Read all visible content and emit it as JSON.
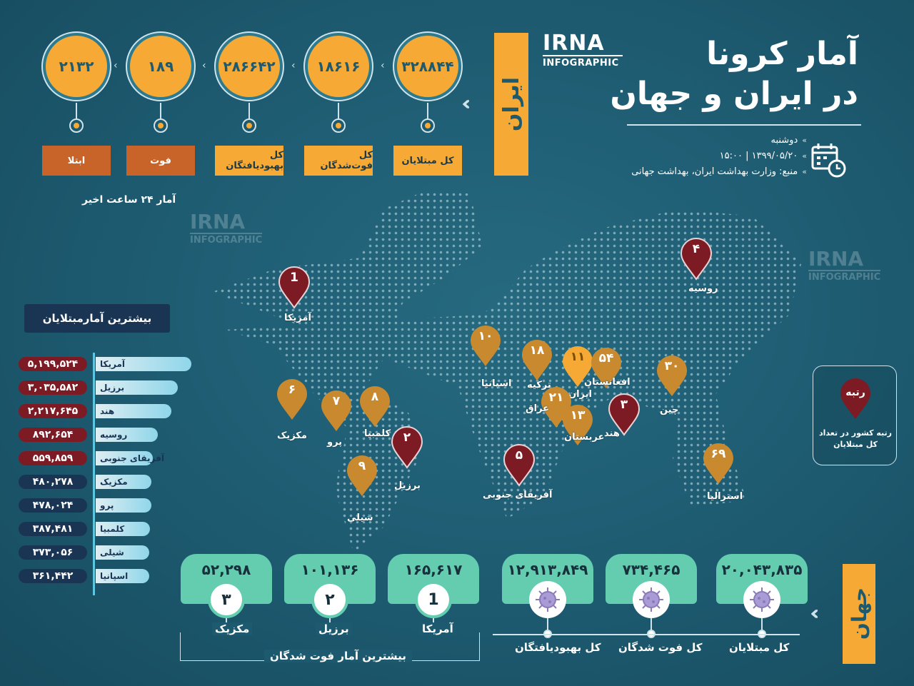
{
  "header": {
    "title_line1": "آمار کرونا",
    "title_line2": "در ایران و جهان",
    "logo_mark": "IRNA",
    "logo_sub": "INFOGRAPHIC",
    "weekday": "دوشنبه",
    "datetime": "۱۳۹۹/۰۵/۲۰ | ۱۵:۰۰",
    "source": "منبع: وزارت بهداشت ایران، بهداشت جهانی"
  },
  "iran": {
    "tab_label": "ایران",
    "stats": [
      {
        "value": "۳۲۸۸۴۴",
        "label": "کل مبتلایان",
        "style": "gold"
      },
      {
        "value": "۱۸۶۱۶",
        "label": "کل فوت‌شدگان",
        "style": "gold"
      },
      {
        "value": "۲۸۶۶۴۲",
        "label": "کل بهبودیافتگان",
        "style": "gold"
      },
      {
        "value": "۱۸۹",
        "label": "فوت",
        "style": "brown"
      },
      {
        "value": "۲۱۳۲",
        "label": "ابتلا",
        "style": "brown"
      }
    ],
    "note_24h": "آمار ۲۴ ساعت اخیر"
  },
  "top_infected": {
    "title": "بیشترین آمارمبتلایان",
    "rows": [
      {
        "country": "آمریکا",
        "value": "۵,۱۹۹,۵۲۴",
        "amount": 5199524,
        "tone": "red"
      },
      {
        "country": "برزیل",
        "value": "۳,۰۳۵,۵۸۲",
        "amount": 3035582,
        "tone": "red"
      },
      {
        "country": "هند",
        "value": "۲,۲۱۷,۶۴۵",
        "amount": 2217645,
        "tone": "red"
      },
      {
        "country": "روسیه",
        "value": "۸۹۲,۶۵۴",
        "amount": 892654,
        "tone": "red"
      },
      {
        "country": "آفریقای جنوبی",
        "value": "۵۵۹,۸۵۹",
        "amount": 559859,
        "tone": "red"
      },
      {
        "country": "مکزیک",
        "value": "۴۸۰,۲۷۸",
        "amount": 480278,
        "tone": "blue"
      },
      {
        "country": "پرو",
        "value": "۴۷۸,۰۲۴",
        "amount": 478024,
        "tone": "blue"
      },
      {
        "country": "کلمبیا",
        "value": "۳۸۷,۴۸۱",
        "amount": 387481,
        "tone": "blue"
      },
      {
        "country": "شیلی",
        "value": "۳۷۳,۰۵۶",
        "amount": 373056,
        "tone": "blue"
      },
      {
        "country": "اسپانیا",
        "value": "۳۶۱,۴۴۲",
        "amount": 361442,
        "tone": "blue"
      }
    ]
  },
  "map_pins": [
    {
      "rank": "1",
      "label": "آمریکا",
      "tone": "red"
    },
    {
      "rank": "۶",
      "label": "مکزیک",
      "tone": "gold"
    },
    {
      "rank": "۷",
      "label": "پرو",
      "tone": "gold"
    },
    {
      "rank": "۸",
      "label": "کلمبیا",
      "tone": "gold"
    },
    {
      "rank": "۲",
      "label": "برزیل",
      "tone": "red"
    },
    {
      "rank": "۹",
      "label": "شیلی",
      "tone": "gold"
    },
    {
      "rank": "۱۰",
      "label": "اسپانیا",
      "tone": "gold"
    },
    {
      "rank": "۵",
      "label": "آفریقای جنوبی",
      "tone": "red"
    },
    {
      "rank": "۱۸",
      "label": "ترکیه",
      "tone": "gold"
    },
    {
      "rank": "۱۱",
      "label": "ایران",
      "tone": "yellow"
    },
    {
      "rank": "۵۴",
      "label": "افغانستان",
      "tone": "gold"
    },
    {
      "rank": "۲۱",
      "label": "عراق",
      "tone": "gold"
    },
    {
      "rank": "۱۳",
      "label": "عربستان",
      "tone": "gold"
    },
    {
      "rank": "۳",
      "label": "هند",
      "tone": "red"
    },
    {
      "rank": "۳۰",
      "label": "چین",
      "tone": "gold"
    },
    {
      "rank": "۴",
      "label": "روسیه",
      "tone": "red"
    },
    {
      "rank": "۶۹",
      "label": "استرالیا",
      "tone": "gold"
    }
  ],
  "rank_legend": {
    "badge": "رتبه",
    "caption": "رتبه کشور در تعداد کل مبتلایان"
  },
  "world": {
    "tab_label": "جهان",
    "totals": [
      {
        "value": "۲۰,۰۴۳,۸۳۵",
        "label": "کل مبتلایان"
      },
      {
        "value": "۷۳۴,۴۶۵",
        "label": "کل فوت شدگان"
      },
      {
        "value": "۱۲,۹۱۳,۸۴۹",
        "label": "کل بهبودیافتگان"
      }
    ],
    "top_deaths_title": "بیشترین آمار فوت شدگان",
    "top_deaths": [
      {
        "rank": "1",
        "value": "۱۶۵,۶۱۷",
        "country": "آمریکا"
      },
      {
        "rank": "۲",
        "value": "۱۰۱,۱۳۶",
        "country": "برزیل"
      },
      {
        "rank": "۳",
        "value": "۵۲,۲۹۸",
        "country": "مکزیک"
      }
    ]
  },
  "colors": {
    "gold": "#f6a935",
    "brown_pin": "#c98a2f",
    "red_pin": "#7d1b24",
    "green": "#64cdb0",
    "navy": "#1a3554"
  }
}
